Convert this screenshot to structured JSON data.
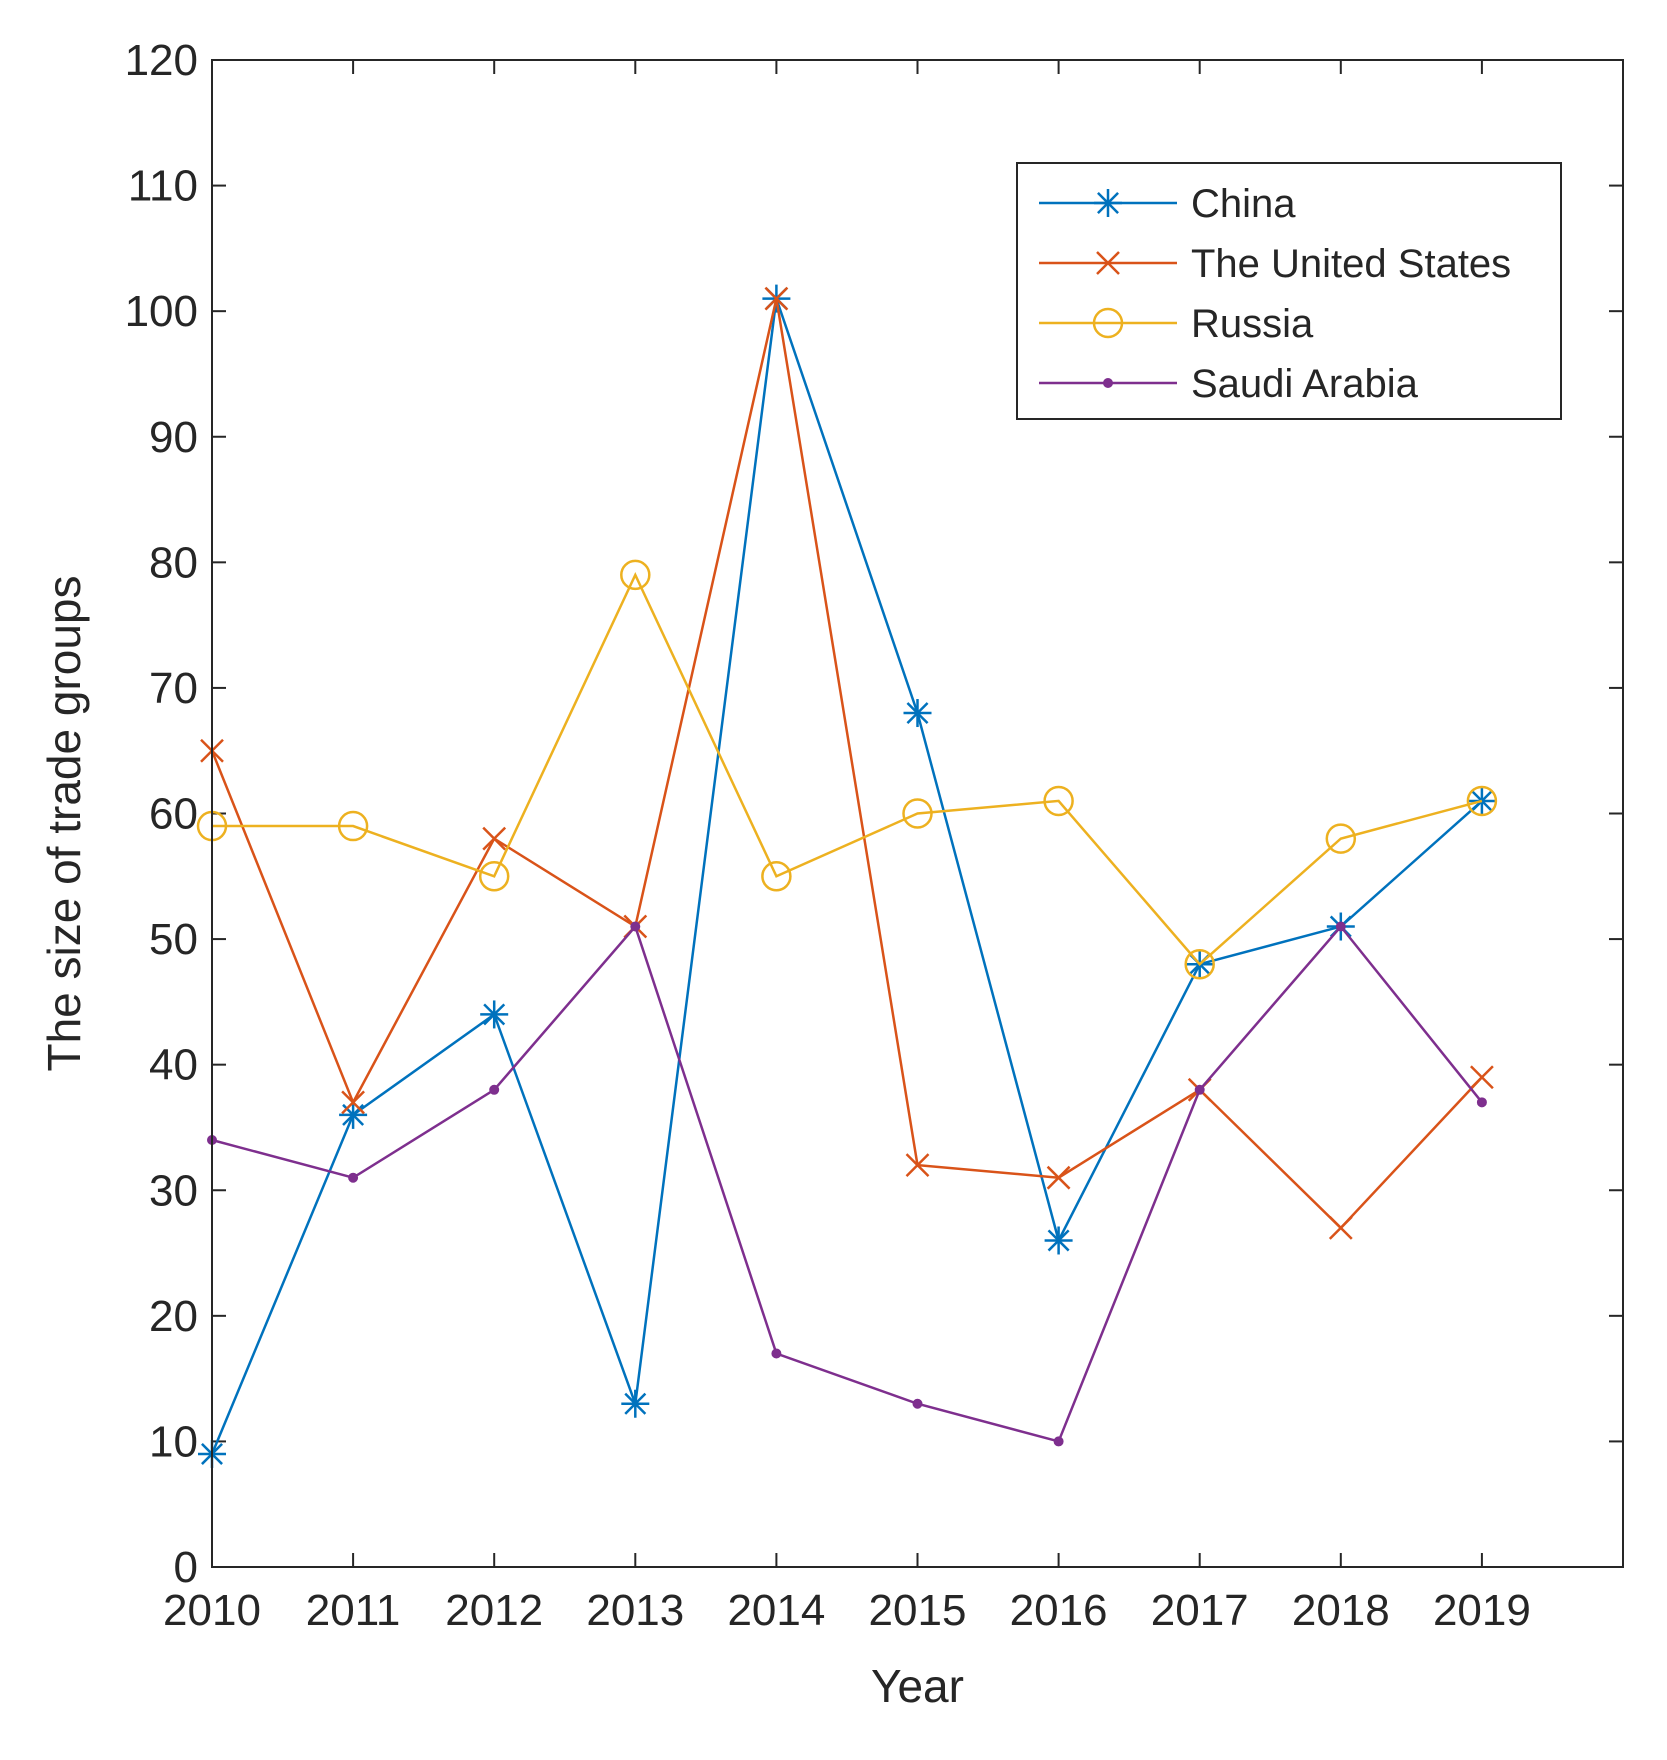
{
  "chart_data": {
    "type": "line",
    "title": "",
    "xlabel": "Year",
    "ylabel": "The size of trade groups",
    "x": [
      2010,
      2011,
      2012,
      2013,
      2014,
      2015,
      2016,
      2017,
      2018,
      2019
    ],
    "xlim": [
      2010,
      2020
    ],
    "ylim": [
      0,
      120
    ],
    "yticks": [
      0,
      10,
      20,
      30,
      40,
      50,
      60,
      70,
      80,
      90,
      100,
      110,
      120
    ],
    "grid": false,
    "legend_location": "top-right",
    "series": [
      {
        "name": "China",
        "color": "#0072BD",
        "marker": "asterisk",
        "values": [
          9,
          36,
          44,
          13,
          101,
          68,
          26,
          48,
          51,
          61
        ]
      },
      {
        "name": "The United States",
        "color": "#D95319",
        "marker": "cross",
        "values": [
          65,
          37,
          58,
          51,
          101,
          32,
          31,
          38,
          27,
          39
        ]
      },
      {
        "name": "Russia",
        "color": "#EDB120",
        "marker": "circle",
        "values": [
          59,
          59,
          55,
          79,
          55,
          60,
          61,
          48,
          58,
          61
        ]
      },
      {
        "name": "Saudi Arabia",
        "color": "#7E2F8E",
        "marker": "dot",
        "values": [
          34,
          31,
          38,
          51,
          17,
          13,
          10,
          38,
          51,
          37
        ]
      }
    ]
  }
}
